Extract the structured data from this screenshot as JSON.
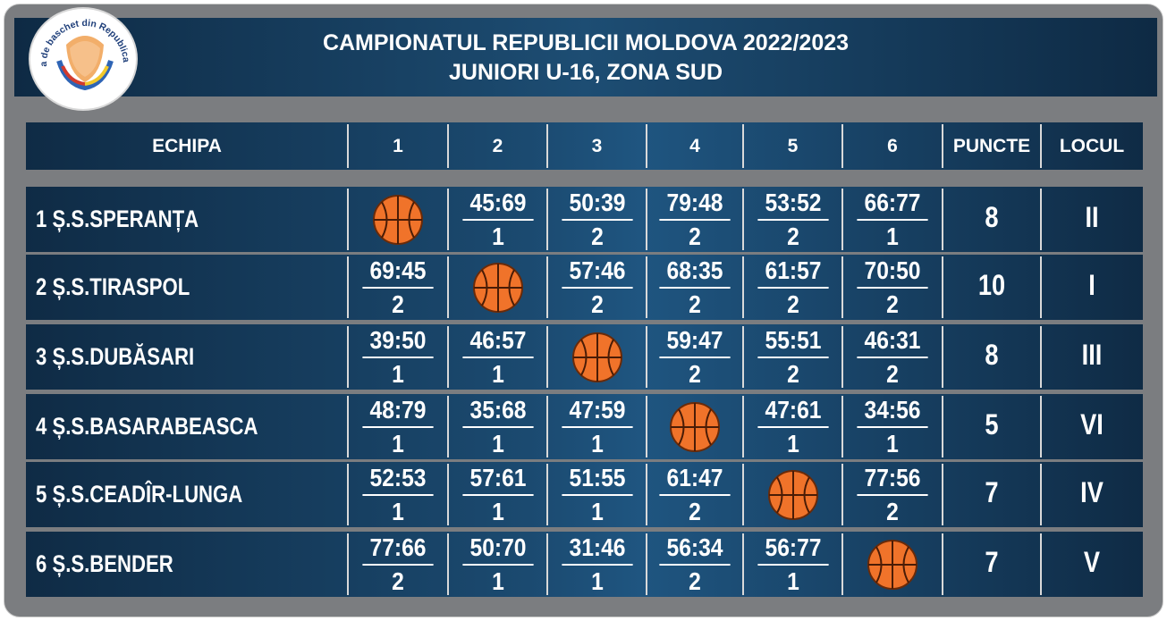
{
  "header": {
    "title_line1": "CAMPIONATUL REPUBLICII MOLDOVA 2022/2023",
    "title_line2": "JUNIORI U-16, ZONA SUD"
  },
  "logo": {
    "text": "Federația de baschet din Republica Moldova",
    "icon": "basketball-cup-logo"
  },
  "columns": [
    "ECHIPA",
    "1",
    "2",
    "3",
    "4",
    "5",
    "6",
    "PUNCTE",
    "LOCUL"
  ],
  "colors": {
    "header_bg": "#1d4d73",
    "frame": "#7b7d80",
    "ball": "#f0732a"
  },
  "rows": [
    {
      "team": "1 Ș.S.SPERANȚA",
      "results": [
        null,
        {
          "score": "45:69",
          "pts": "1"
        },
        {
          "score": "50:39",
          "pts": "2"
        },
        {
          "score": "79:48",
          "pts": "2"
        },
        {
          "score": "53:52",
          "pts": "2"
        },
        {
          "score": "66:77",
          "pts": "1"
        }
      ],
      "puncte": "8",
      "locul": "II"
    },
    {
      "team": "2 Ș.S.TIRASPOL",
      "results": [
        {
          "score": "69:45",
          "pts": "2"
        },
        null,
        {
          "score": "57:46",
          "pts": "2"
        },
        {
          "score": "68:35",
          "pts": "2"
        },
        {
          "score": "61:57",
          "pts": "2"
        },
        {
          "score": "70:50",
          "pts": "2"
        }
      ],
      "puncte": "10",
      "locul": "I"
    },
    {
      "team": "3 Ș.S.DUBĂSARI",
      "results": [
        {
          "score": "39:50",
          "pts": "1"
        },
        {
          "score": "46:57",
          "pts": "1"
        },
        null,
        {
          "score": "59:47",
          "pts": "2"
        },
        {
          "score": "55:51",
          "pts": "2"
        },
        {
          "score": "46:31",
          "pts": "2"
        }
      ],
      "puncte": "8",
      "locul": "III"
    },
    {
      "team": "4 Ș.S.BASARABEASCA",
      "results": [
        {
          "score": "48:79",
          "pts": "1"
        },
        {
          "score": "35:68",
          "pts": "1"
        },
        {
          "score": "47:59",
          "pts": "1"
        },
        null,
        {
          "score": "47:61",
          "pts": "1"
        },
        {
          "score": "34:56",
          "pts": "1"
        }
      ],
      "puncte": "5",
      "locul": "VI"
    },
    {
      "team": "5 Ș.S.CEADÎR-LUNGA",
      "results": [
        {
          "score": "52:53",
          "pts": "1"
        },
        {
          "score": "57:61",
          "pts": "1"
        },
        {
          "score": "51:55",
          "pts": "1"
        },
        {
          "score": "61:47",
          "pts": "2"
        },
        null,
        {
          "score": "77:56",
          "pts": "2"
        }
      ],
      "puncte": "7",
      "locul": "IV"
    },
    {
      "team": "6 Ș.S.BENDER",
      "results": [
        {
          "score": "77:66",
          "pts": "2"
        },
        {
          "score": "50:70",
          "pts": "1"
        },
        {
          "score": "31:46",
          "pts": "1"
        },
        {
          "score": "56:34",
          "pts": "2"
        },
        {
          "score": "56:77",
          "pts": "1"
        },
        null
      ],
      "puncte": "7",
      "locul": "V"
    }
  ]
}
